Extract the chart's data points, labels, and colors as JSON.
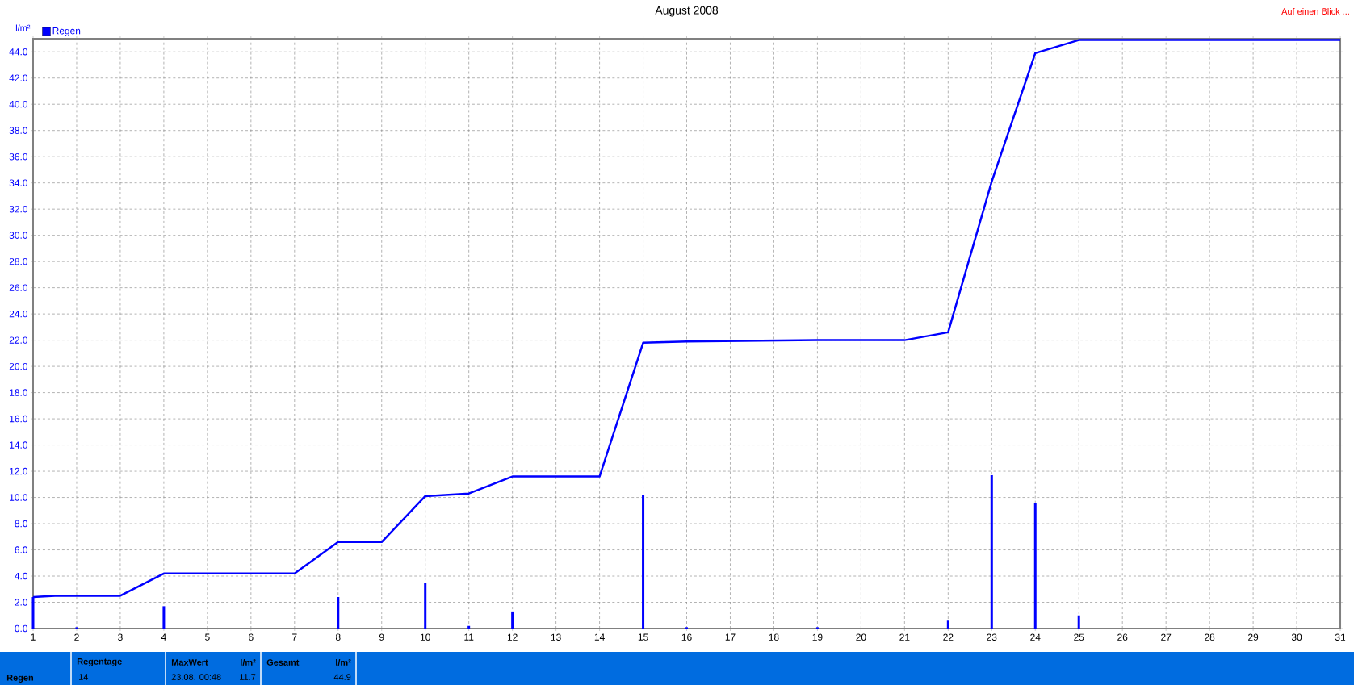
{
  "chart_data": {
    "type": "bar",
    "title": "August 2008",
    "ylabel": "l/m²",
    "annotations": [
      "Auf einen Blick ...",
      "Regen",
      "Regentage",
      "14",
      "MaxWert",
      "l/m²",
      "23.08.  00:48",
      "11.7",
      "Gesamt",
      "l/m²",
      "44.9"
    ],
    "series": [
      {
        "name": "Regen",
        "color": "#0000ff",
        "x": [
          1,
          2,
          4,
          8,
          10,
          11,
          12,
          15,
          16,
          19,
          22,
          23,
          24,
          25
        ],
        "values": [
          2.4,
          0.1,
          1.7,
          2.4,
          3.5,
          0.2,
          1.3,
          10.2,
          0.1,
          0.1,
          0.6,
          11.7,
          9.6,
          1.0
        ]
      },
      {
        "type": "line",
        "color": "#0000ff",
        "x": [
          1,
          1.5,
          2,
          3,
          4,
          7,
          8,
          9,
          10,
          11,
          12,
          14,
          15,
          16,
          19,
          21,
          22,
          23,
          24,
          25,
          31
        ],
        "values": [
          2.4,
          2.5,
          2.5,
          2.5,
          4.2,
          4.2,
          6.6,
          6.6,
          10.1,
          10.3,
          11.6,
          11.6,
          21.8,
          21.9,
          22.0,
          22.0,
          22.6,
          34.1,
          43.9,
          44.9,
          44.9
        ]
      }
    ],
    "xlim": [
      1,
      31
    ],
    "xticks": [
      1,
      2,
      3,
      4,
      5,
      6,
      7,
      8,
      9,
      10,
      11,
      12,
      13,
      14,
      15,
      16,
      17,
      18,
      19,
      20,
      21,
      22,
      23,
      24,
      25,
      26,
      27,
      28,
      29,
      30,
      31
    ],
    "ylim": [
      0,
      45
    ],
    "yticks": [
      {
        "value": 0,
        "label": "0.0"
      },
      {
        "value": 2,
        "label": "2.0"
      },
      {
        "value": 4,
        "label": "4.0"
      },
      {
        "value": 6,
        "label": "6.0"
      },
      {
        "value": 8,
        "label": "8.0"
      },
      {
        "value": 10,
        "label": "10.0"
      },
      {
        "value": 12,
        "label": "12.0"
      },
      {
        "value": 14,
        "label": "14.0"
      },
      {
        "value": 16,
        "label": "16.0"
      },
      {
        "value": 18,
        "label": "18.0"
      },
      {
        "value": 20,
        "label": "20.0"
      },
      {
        "value": 22,
        "label": "22.0"
      },
      {
        "value": 24,
        "label": "24.0"
      },
      {
        "value": 26,
        "label": "26.0"
      },
      {
        "value": 28,
        "label": "28.0"
      },
      {
        "value": 30,
        "label": "30.0"
      },
      {
        "value": 32,
        "label": "32.0"
      },
      {
        "value": 34,
        "label": "34.0"
      },
      {
        "value": 36,
        "label": "36.0"
      },
      {
        "value": 38,
        "label": "38.0"
      },
      {
        "value": 40,
        "label": "40.0"
      },
      {
        "value": 42,
        "label": "42.0"
      },
      {
        "value": 44,
        "label": "44.0"
      }
    ],
    "grid": true,
    "legend": "top left"
  }
}
